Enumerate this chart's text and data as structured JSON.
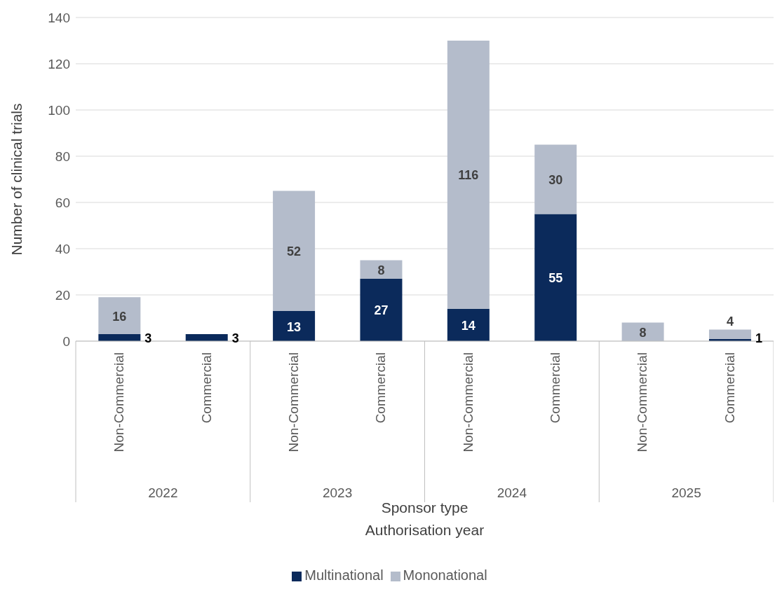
{
  "chart_data": {
    "type": "bar",
    "stacked": true,
    "ylabel": "Number of clinical trials",
    "xlabel": "Sponsor type\nAuthorisation year",
    "categories": [
      "Non-Commercial",
      "Commercial",
      "Non-Commercial",
      "Commercial",
      "Non-Commercial",
      "Commercial",
      "Non-Commercial",
      "Commercial"
    ],
    "annotations": [
      "2022",
      "2023",
      "2024",
      "2025"
    ],
    "series": [
      {
        "name": "Multinational",
        "color": "#0b2a5b",
        "values": [
          3,
          3,
          13,
          27,
          14,
          55,
          0,
          1
        ],
        "value_labels": [
          "3",
          "3",
          "13",
          "27",
          "14",
          "55",
          null,
          "1"
        ]
      },
      {
        "name": "Mononational",
        "color": "#b4bccb",
        "values": [
          16,
          0,
          52,
          8,
          116,
          30,
          8,
          4
        ],
        "value_labels": [
          "16",
          null,
          "52",
          "8",
          "116",
          "30",
          "8",
          "4"
        ]
      }
    ],
    "ylim": [
      0,
      140
    ],
    "yticks": [
      0,
      20,
      40,
      60,
      80,
      100,
      120,
      140
    ],
    "grid": "y",
    "legend": "bottom"
  }
}
